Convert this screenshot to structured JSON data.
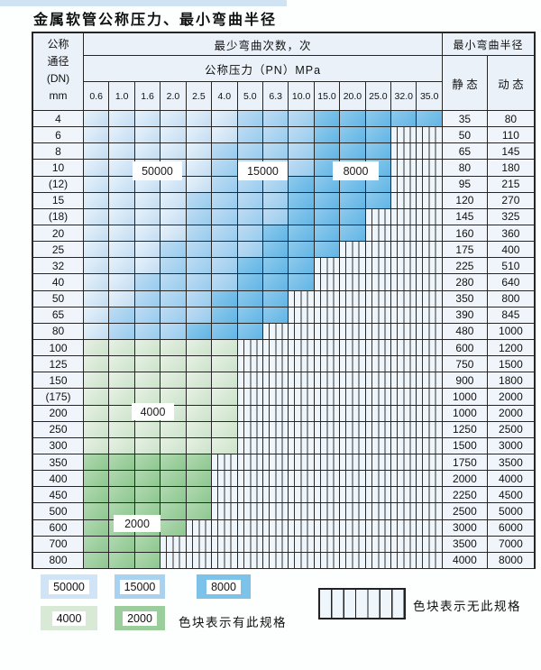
{
  "title": "金属软管公称压力、最小弯曲半径",
  "table": {
    "header": {
      "dn_lines": [
        "公称",
        "通径",
        "(DN)",
        "mm"
      ],
      "bend_cycles_label": "最少弯曲次数，次",
      "pressure_label": "公称压力（PN）MPa",
      "radius_label": "最小弯曲半径",
      "static_label": "静 态",
      "dynamic_label": "动 态"
    },
    "overlays": {
      "band_50000": "50000",
      "band_15000": "15000",
      "band_8000": "8000",
      "band_4000": "4000",
      "band_2000": "2000"
    }
  },
  "chart_data": {
    "type": "table",
    "title": "金属软管公称压力、最小弯曲半径",
    "pressure_columns_mpa": [
      "0.6",
      "1.0",
      "1.6",
      "2.0",
      "2.5",
      "4.0",
      "5.0",
      "6.3",
      "10.0",
      "15.0",
      "20.0",
      "25.0",
      "32.0",
      "35.0"
    ],
    "bend_cycle_bands": [
      "50000",
      "15000",
      "8000",
      "4000",
      "2000"
    ],
    "radius_columns": [
      "静 态",
      "动 态"
    ],
    "rows": [
      {
        "dn": "4",
        "type": "blue",
        "b15": 6,
        "b8": 9,
        "end": 13,
        "static": "35",
        "dynamic": "80"
      },
      {
        "dn": "6",
        "type": "blue",
        "b15": 6,
        "b8": 9,
        "end": 11,
        "static": "50",
        "dynamic": "110"
      },
      {
        "dn": "8",
        "type": "blue",
        "b15": 5,
        "b8": 9,
        "end": 11,
        "static": "65",
        "dynamic": "145"
      },
      {
        "dn": "10",
        "type": "blue",
        "b15": 5,
        "b8": 9,
        "end": 11,
        "static": "80",
        "dynamic": "180"
      },
      {
        "dn": "(12)",
        "type": "blue",
        "b15": 5,
        "b8": 8,
        "end": 11,
        "static": "95",
        "dynamic": "215"
      },
      {
        "dn": "15",
        "type": "blue",
        "b15": 4,
        "b8": 8,
        "end": 11,
        "static": "120",
        "dynamic": "270"
      },
      {
        "dn": "(18)",
        "type": "blue",
        "b15": 4,
        "b8": 8,
        "end": 10,
        "static": "145",
        "dynamic": "325"
      },
      {
        "dn": "20",
        "type": "blue",
        "b15": 4,
        "b8": 7,
        "end": 10,
        "static": "160",
        "dynamic": "360"
      },
      {
        "dn": "25",
        "type": "blue",
        "b15": 3,
        "b8": 7,
        "end": 9,
        "static": "175",
        "dynamic": "400"
      },
      {
        "dn": "32",
        "type": "blue",
        "b15": 3,
        "b8": 6,
        "end": 8,
        "static": "225",
        "dynamic": "510"
      },
      {
        "dn": "40",
        "type": "blue",
        "b15": 2,
        "b8": 6,
        "end": 8,
        "static": "280",
        "dynamic": "640"
      },
      {
        "dn": "50",
        "type": "blue",
        "b15": 2,
        "b8": 5,
        "end": 7,
        "static": "350",
        "dynamic": "800"
      },
      {
        "dn": "65",
        "type": "blue",
        "b15": 1,
        "b8": 5,
        "end": 7,
        "static": "390",
        "dynamic": "845"
      },
      {
        "dn": "80",
        "type": "blue",
        "b15": 1,
        "b8": 4,
        "end": 6,
        "static": "480",
        "dynamic": "1000"
      },
      {
        "dn": "100",
        "type": "green",
        "shade": "4000",
        "end": 5,
        "static": "600",
        "dynamic": "1200"
      },
      {
        "dn": "125",
        "type": "green",
        "shade": "4000",
        "end": 5,
        "static": "750",
        "dynamic": "1500"
      },
      {
        "dn": "150",
        "type": "green",
        "shade": "4000",
        "end": 5,
        "static": "900",
        "dynamic": "1800"
      },
      {
        "dn": "(175)",
        "type": "green",
        "shade": "4000",
        "end": 5,
        "static": "1000",
        "dynamic": "2000"
      },
      {
        "dn": "200",
        "type": "green",
        "shade": "4000",
        "end": 5,
        "static": "1000",
        "dynamic": "2000"
      },
      {
        "dn": "250",
        "type": "green",
        "shade": "4000",
        "end": 5,
        "static": "1250",
        "dynamic": "2500"
      },
      {
        "dn": "300",
        "type": "green",
        "shade": "4000",
        "end": 5,
        "static": "1500",
        "dynamic": "3000"
      },
      {
        "dn": "350",
        "type": "green",
        "shade": "2000",
        "end": 4,
        "static": "1750",
        "dynamic": "3500"
      },
      {
        "dn": "400",
        "type": "green",
        "shade": "2000",
        "end": 4,
        "static": "2000",
        "dynamic": "4000"
      },
      {
        "dn": "450",
        "type": "green",
        "shade": "2000",
        "end": 4,
        "static": "2250",
        "dynamic": "4500"
      },
      {
        "dn": "500",
        "type": "green",
        "shade": "2000",
        "end": 4,
        "static": "2500",
        "dynamic": "5000"
      },
      {
        "dn": "600",
        "type": "green",
        "shade": "2000",
        "end": 3,
        "static": "3000",
        "dynamic": "6000"
      },
      {
        "dn": "700",
        "type": "green",
        "shade": "2000",
        "end": 2,
        "static": "3500",
        "dynamic": "7000"
      },
      {
        "dn": "800",
        "type": "green",
        "shade": "2000",
        "end": 2,
        "static": "4000",
        "dynamic": "8000"
      }
    ]
  },
  "legend": {
    "items": [
      {
        "label": "50000",
        "color": "#cfe4f6"
      },
      {
        "label": "15000",
        "color": "#a8d2ef"
      },
      {
        "label": "8000",
        "color": "#7dc3e9"
      },
      {
        "label": "4000",
        "color": "#d8ead6"
      },
      {
        "label": "2000",
        "color": "#9bce9c"
      }
    ],
    "has_spec_text": "色块表示有此规格",
    "no_spec_text": "色块表示无此规格"
  },
  "colors": {
    "band_50000": "#cfe4f6",
    "band_15000": "#a8d2ef",
    "band_8000": "#7dc3e9",
    "band_4000": "#d8ead6",
    "band_2000": "#9bce9c",
    "grid_line": "#2b2b2b",
    "hatch_bg": "#eef5fb",
    "header_bg": "#eaf1f8",
    "side_col_bg": "#eff5fa"
  }
}
